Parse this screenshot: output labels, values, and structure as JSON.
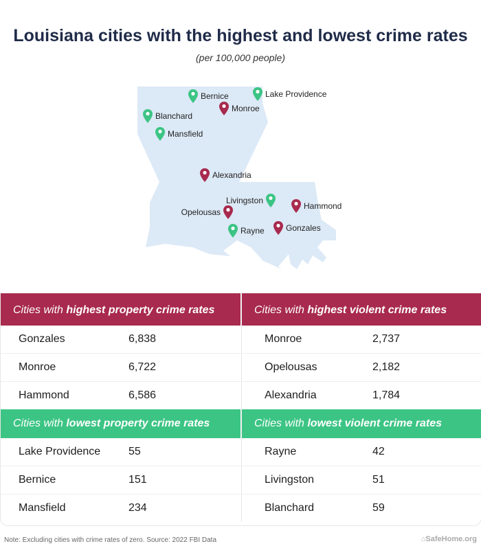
{
  "title": "Louisiana cities with the highest and lowest crime rates",
  "subtitle": "(per 100,000 people)",
  "colors": {
    "high": "#a82a4e",
    "low": "#3cc484",
    "map": "#dce9f6",
    "title": "#1f2b48"
  },
  "map": {
    "cities": [
      {
        "name": "Bernice",
        "category": "low"
      },
      {
        "name": "Lake Providence",
        "category": "low"
      },
      {
        "name": "Monroe",
        "category": "high"
      },
      {
        "name": "Blanchard",
        "category": "low"
      },
      {
        "name": "Mansfield",
        "category": "low"
      },
      {
        "name": "Alexandria",
        "category": "high"
      },
      {
        "name": "Livingston",
        "category": "low"
      },
      {
        "name": "Opelousas",
        "category": "high"
      },
      {
        "name": "Hammond",
        "category": "high"
      },
      {
        "name": "Rayne",
        "category": "low"
      },
      {
        "name": "Gonzales",
        "category": "high"
      }
    ]
  },
  "tables": {
    "high_property": {
      "prefix": "Cities with ",
      "bold": "highest property crime rates",
      "rows": [
        {
          "city": "Gonzales",
          "value": "6,838"
        },
        {
          "city": "Monroe",
          "value": "6,722"
        },
        {
          "city": "Hammond",
          "value": "6,586"
        }
      ]
    },
    "high_violent": {
      "prefix": "Cities with ",
      "bold": "highest violent crime rates",
      "rows": [
        {
          "city": "Monroe",
          "value": "2,737"
        },
        {
          "city": "Opelousas",
          "value": "2,182"
        },
        {
          "city": "Alexandria",
          "value": "1,784"
        }
      ]
    },
    "low_property": {
      "prefix": "Cities with ",
      "bold": "lowest property crime rates",
      "rows": [
        {
          "city": "Lake Providence",
          "value": "55"
        },
        {
          "city": "Bernice",
          "value": "151"
        },
        {
          "city": "Mansfield",
          "value": "234"
        }
      ]
    },
    "low_violent": {
      "prefix": "Cities with ",
      "bold": "lowest violent crime rates",
      "rows": [
        {
          "city": "Rayne",
          "value": "42"
        },
        {
          "city": "Livingston",
          "value": "51"
        },
        {
          "city": "Blanchard",
          "value": "59"
        }
      ]
    }
  },
  "note": "Note: Excluding cities with crime rates of zero. Source: 2022 FBI Data",
  "brand": "SafeHome.org"
}
